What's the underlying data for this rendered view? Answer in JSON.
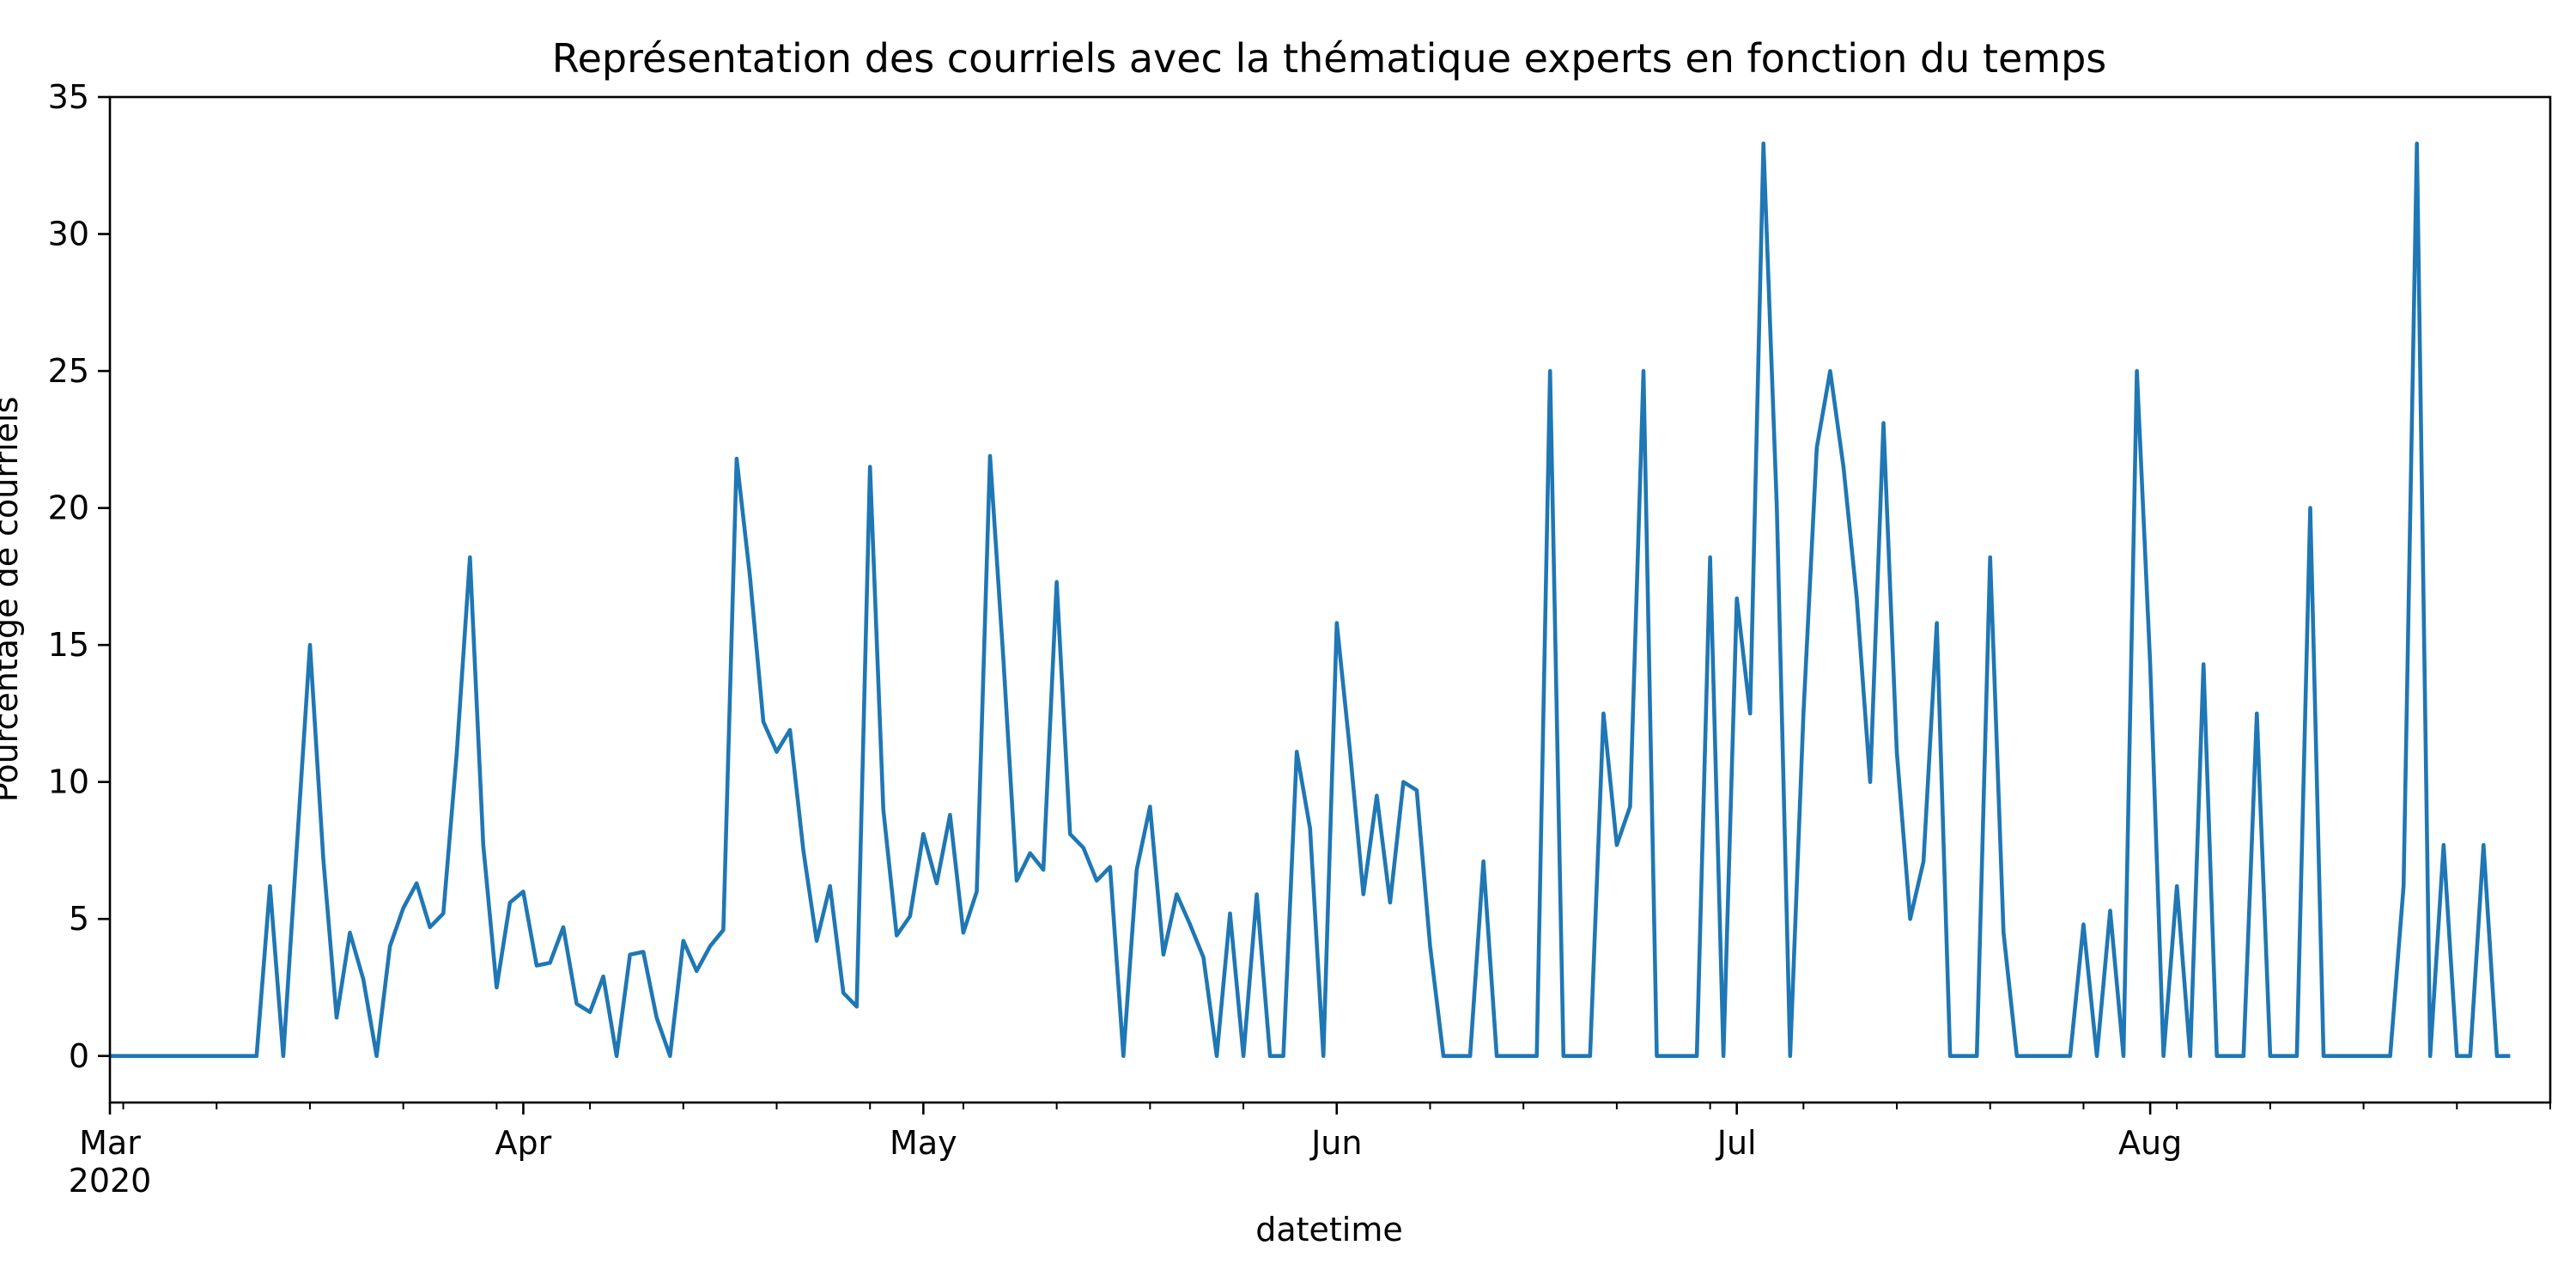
{
  "chart_data": {
    "type": "line",
    "title": "Représentation des courriels avec la thématique experts en fonction du temps",
    "xlabel": "datetime",
    "ylabel": "Pourcentage de courriels",
    "x_range": [
      "2020-03-01",
      "2020-08-31"
    ],
    "ylim": [
      -1.7,
      35
    ],
    "y_ticks": [
      0,
      5,
      10,
      15,
      20,
      25,
      30,
      35
    ],
    "x_ticks": [
      {
        "date": "2020-03-01",
        "label": "Mar",
        "sublabel": "2020"
      },
      {
        "date": "2020-04-01",
        "label": "Apr"
      },
      {
        "date": "2020-05-01",
        "label": "May"
      },
      {
        "date": "2020-06-01",
        "label": "Jun"
      },
      {
        "date": "2020-07-01",
        "label": "Jul"
      },
      {
        "date": "2020-08-01",
        "label": "Aug"
      }
    ],
    "grid": false,
    "color": "#1f77b4",
    "series": [
      {
        "start_date": "2020-03-01",
        "frequency": "daily",
        "values": [
          0,
          0,
          0,
          0,
          0,
          0,
          0,
          0,
          0,
          0,
          0,
          0,
          6.2,
          0,
          7.5,
          15,
          7.2,
          1.4,
          4.5,
          2.8,
          0,
          4,
          5.4,
          6.3,
          4.7,
          5.2,
          11,
          18.2,
          7.7,
          2.5,
          5.6,
          6,
          3.3,
          3.4,
          4.7,
          1.9,
          1.6,
          2.9,
          0,
          3.7,
          3.8,
          1.4,
          0,
          4.2,
          3.1,
          4,
          4.6,
          21.8,
          17.5,
          12.2,
          11.1,
          11.9,
          7.5,
          4.2,
          6.2,
          2.3,
          1.8,
          21.5,
          9,
          4.4,
          5.1,
          8.1,
          6.3,
          8.8,
          4.5,
          6,
          21.9,
          14.5,
          6.4,
          7.4,
          6.8,
          17.3,
          8.1,
          7.6,
          6.4,
          6.9,
          0,
          6.8,
          9.1,
          3.7,
          5.9,
          4.8,
          3.6,
          0,
          5.2,
          0,
          5.9,
          0,
          0,
          11.1,
          8.3,
          0,
          15.8,
          11.1,
          5.9,
          9.5,
          5.6,
          10,
          9.7,
          4,
          0,
          0,
          0,
          7.1,
          0,
          0,
          0,
          0,
          25,
          0,
          0,
          0,
          12.5,
          7.7,
          9.1,
          25,
          0,
          0,
          0,
          0,
          18.2,
          0,
          16.7,
          12.5,
          33.3,
          20,
          0,
          12.5,
          22.2,
          25,
          21.5,
          16.7,
          10,
          23.1,
          11.1,
          5,
          7.1,
          15.8,
          0,
          0,
          0,
          18.2,
          4.5,
          0,
          0,
          0,
          0,
          0,
          4.8,
          0,
          5.3,
          0,
          25,
          14.3,
          0,
          6.2,
          0,
          14.3,
          0,
          0,
          0,
          12.5,
          0,
          0,
          0,
          20,
          0,
          0,
          0,
          0,
          0,
          0,
          6.2,
          33.3,
          0,
          7.7,
          0,
          0,
          7.7,
          0,
          0
        ]
      }
    ]
  }
}
